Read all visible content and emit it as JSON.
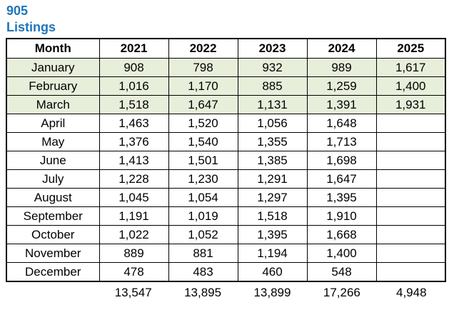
{
  "title": {
    "line1": "905",
    "line2": "Listings"
  },
  "colors": {
    "title_blue": "#1E76BC",
    "highlight_green": "#E7EEDA",
    "border": "#000000"
  },
  "chart_data": {
    "type": "table",
    "title": "905 Listings",
    "columns": [
      "Month",
      "2021",
      "2022",
      "2023",
      "2024",
      "2025"
    ],
    "rows": [
      {
        "month": "January",
        "values": [
          "908",
          "798",
          "932",
          "989",
          "1,617"
        ],
        "highlighted": true
      },
      {
        "month": "February",
        "values": [
          "1,016",
          "1,170",
          "885",
          "1,259",
          "1,400"
        ],
        "highlighted": true
      },
      {
        "month": "March",
        "values": [
          "1,518",
          "1,647",
          "1,131",
          "1,391",
          "1,931"
        ],
        "highlighted": true
      },
      {
        "month": "April",
        "values": [
          "1,463",
          "1,520",
          "1,056",
          "1,648",
          ""
        ],
        "highlighted": false
      },
      {
        "month": "May",
        "values": [
          "1,376",
          "1,540",
          "1,355",
          "1,713",
          ""
        ],
        "highlighted": false
      },
      {
        "month": "June",
        "values": [
          "1,413",
          "1,501",
          "1,385",
          "1,698",
          ""
        ],
        "highlighted": false
      },
      {
        "month": "July",
        "values": [
          "1,228",
          "1,230",
          "1,291",
          "1,647",
          ""
        ],
        "highlighted": false
      },
      {
        "month": "August",
        "values": [
          "1,045",
          "1,054",
          "1,297",
          "1,395",
          ""
        ],
        "highlighted": false
      },
      {
        "month": "September",
        "values": [
          "1,191",
          "1,019",
          "1,518",
          "1,910",
          ""
        ],
        "highlighted": false
      },
      {
        "month": "October",
        "values": [
          "1,022",
          "1,052",
          "1,395",
          "1,668",
          ""
        ],
        "highlighted": false
      },
      {
        "month": "November",
        "values": [
          "889",
          "881",
          "1,194",
          "1,400",
          ""
        ],
        "highlighted": false
      },
      {
        "month": "December",
        "values": [
          "478",
          "483",
          "460",
          "548",
          ""
        ],
        "highlighted": false
      }
    ],
    "totals": [
      "13,547",
      "13,895",
      "13,899",
      "17,266",
      "4,948"
    ]
  }
}
